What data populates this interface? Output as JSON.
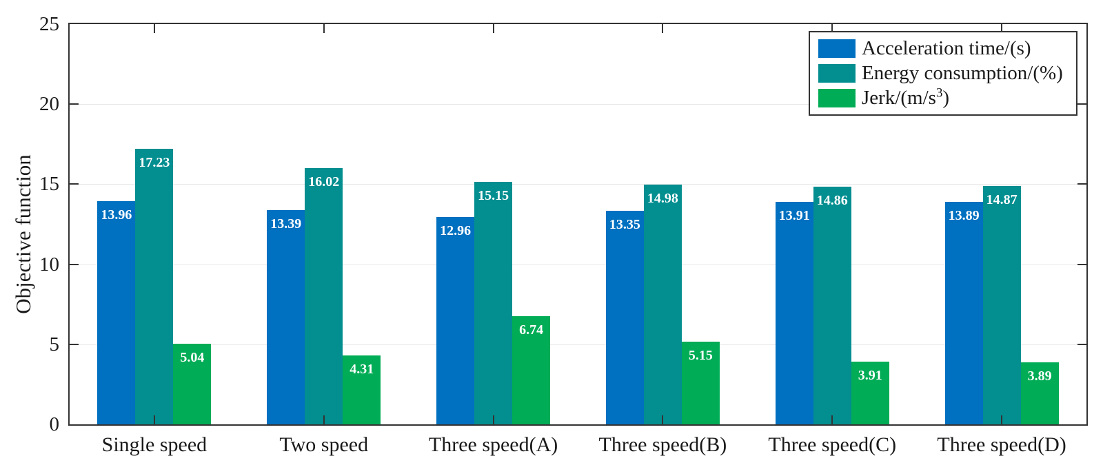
{
  "chart_data": {
    "type": "bar",
    "title": "",
    "xlabel": "",
    "ylabel": "Objective function",
    "ylim": [
      0,
      25
    ],
    "yticks": [
      0,
      5,
      10,
      15,
      20,
      25
    ],
    "grid": "horizontal-only",
    "grid_color": "#e8e8e8",
    "axis_color": "#333333",
    "legend_position": "top-right",
    "legend_border": "#333333",
    "bar_labels_shown": true,
    "bar_label_color": "#ffffff",
    "categories": [
      "Single speed",
      "Two speed",
      "Three speed(A)",
      "Three speed(B)",
      "Three speed(C)",
      "Three speed(D)"
    ],
    "series": [
      {
        "name": "Acceleration time/(s)",
        "color": "#0070c0",
        "values": [
          13.96,
          13.39,
          12.96,
          13.35,
          13.91,
          13.89
        ]
      },
      {
        "name": "Energy consumption/(%)",
        "color": "#038e90",
        "values": [
          17.23,
          16.02,
          15.15,
          14.98,
          14.86,
          14.87
        ]
      },
      {
        "name": "Jerk/(m/s³)",
        "color": "#00ac55",
        "values": [
          5.04,
          4.31,
          6.74,
          5.15,
          3.91,
          3.89
        ]
      }
    ]
  }
}
